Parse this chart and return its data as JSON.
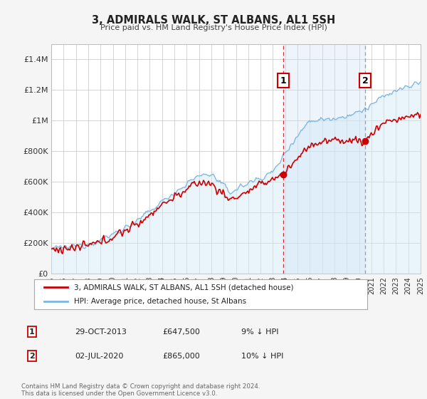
{
  "title": "3, ADMIRALS WALK, ST ALBANS, AL1 5SH",
  "subtitle": "Price paid vs. HM Land Registry's House Price Index (HPI)",
  "ylim": [
    0,
    1500000
  ],
  "yticks": [
    0,
    200000,
    400000,
    600000,
    800000,
    1000000,
    1200000,
    1400000
  ],
  "ytick_labels": [
    "£0",
    "£200K",
    "£400K",
    "£600K",
    "£800K",
    "£1M",
    "£1.2M",
    "£1.4M"
  ],
  "x_start_year": 1995,
  "x_end_year": 2025,
  "hpi_color": "#7ab4e0",
  "hpi_fill_color": "#d0e8f8",
  "price_color": "#cc0000",
  "annotation1_date": 2013.83,
  "annotation1_price": 647500,
  "annotation1_label": "1",
  "annotation2_date": 2020.5,
  "annotation2_price": 865000,
  "annotation2_label": "2",
  "shade_color": "#cce0f5",
  "legend_label_red": "3, ADMIRALS WALK, ST ALBANS, AL1 5SH (detached house)",
  "legend_label_blue": "HPI: Average price, detached house, St Albans",
  "table_row1": [
    "1",
    "29-OCT-2013",
    "£647,500",
    "9% ↓ HPI"
  ],
  "table_row2": [
    "2",
    "02-JUL-2020",
    "£865,000",
    "10% ↓ HPI"
  ],
  "footer": "Contains HM Land Registry data © Crown copyright and database right 2024.\nThis data is licensed under the Open Government Licence v3.0.",
  "bg_color": "#f5f5f5",
  "plot_bg_color": "#ffffff",
  "grid_color": "#cccccc"
}
